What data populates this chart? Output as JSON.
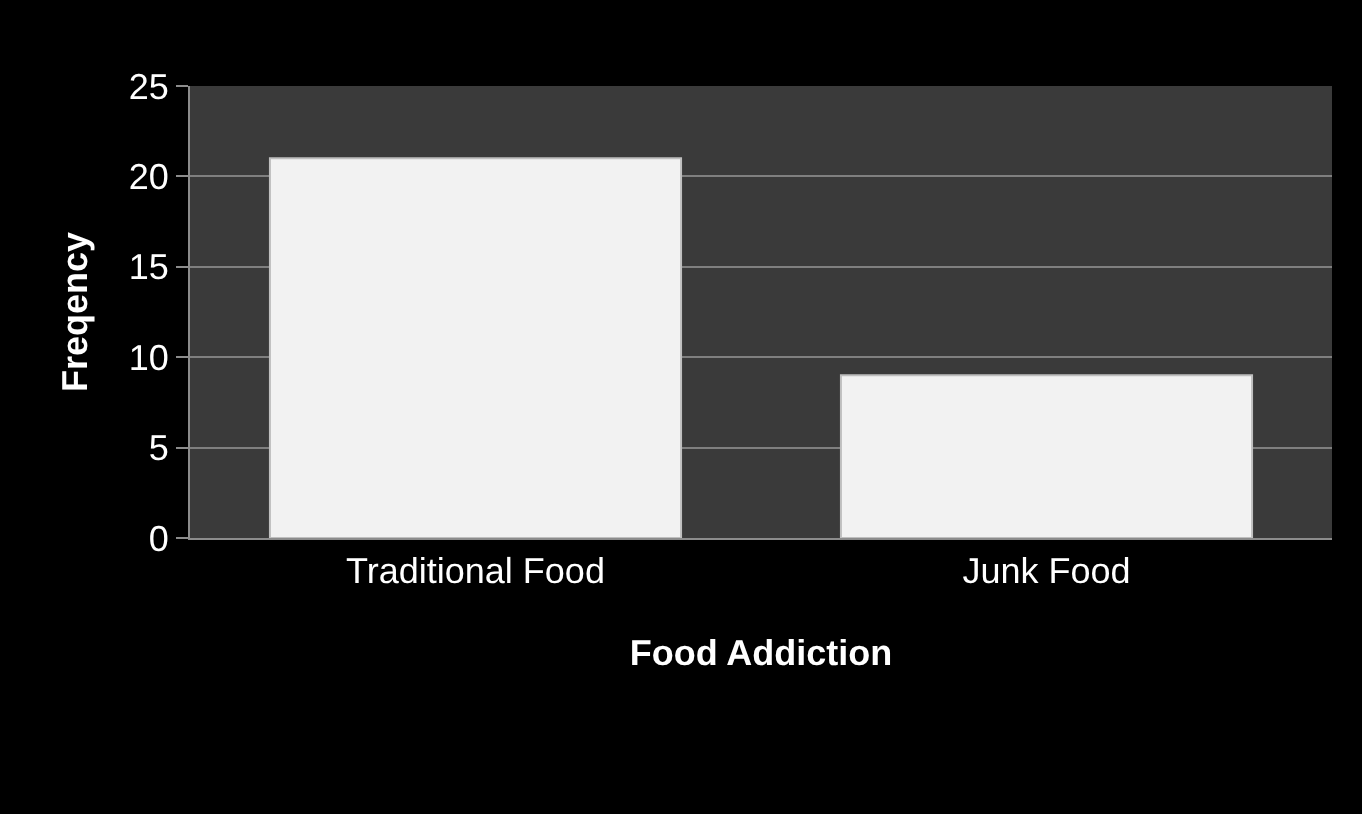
{
  "chart_data": {
    "type": "bar",
    "xlabel": "Food Addiction",
    "ylabel": "Freqency",
    "categories": [
      "Traditional Food",
      "Junk Food"
    ],
    "values": [
      21,
      9
    ],
    "color": "#f2f2f2",
    "ylim": [
      0,
      25
    ],
    "yticks": [
      0,
      5,
      10,
      15,
      20,
      25
    ],
    "grid": "y"
  }
}
